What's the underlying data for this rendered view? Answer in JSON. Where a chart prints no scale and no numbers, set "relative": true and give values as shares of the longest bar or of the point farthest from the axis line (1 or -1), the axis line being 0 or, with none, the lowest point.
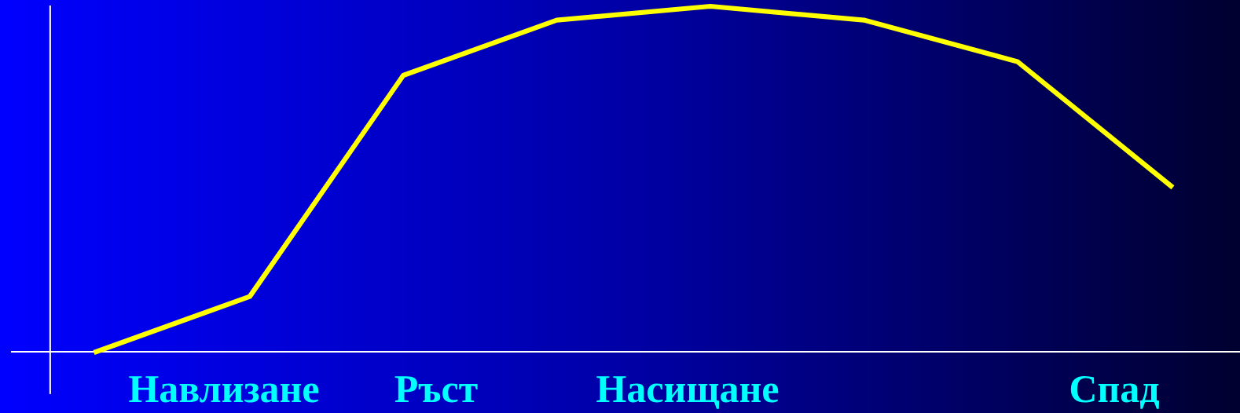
{
  "chart_data": {
    "type": "line",
    "relative": true,
    "categories": [
      null,
      null,
      null,
      null,
      null,
      null,
      null,
      null
    ],
    "series": [
      {
        "color": "#ffff00",
        "values": [
          0,
          0.16,
          0.8,
          0.96,
          1,
          0.96,
          0.84,
          0.48
        ]
      }
    ],
    "annotations": [
      "Навлизане",
      "Ръст",
      "Насищане",
      "Спад"
    ],
    "legend": false,
    "marker": "none",
    "line_style": "solid"
  }
}
